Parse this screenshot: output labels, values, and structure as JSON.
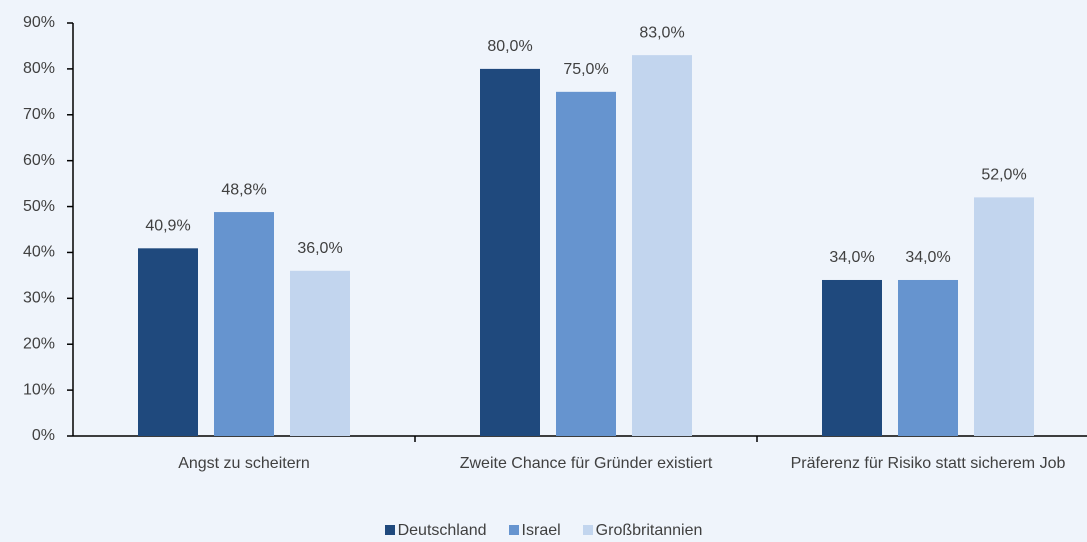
{
  "chart_data": {
    "type": "bar",
    "categories": [
      "Angst zu scheitern",
      "Zweite Chance für Gründer existiert",
      "Präferenz für Risiko statt sicherem Job"
    ],
    "series": [
      {
        "name": "Deutschland",
        "color": "#1f497d",
        "values": [
          40.9,
          80.0,
          34.0
        ],
        "value_labels": [
          "40,9%",
          "80,0%",
          "34,0%"
        ]
      },
      {
        "name": "Israel",
        "color": "#6694cf",
        "values": [
          48.8,
          75.0,
          34.0
        ],
        "value_labels": [
          "48,8%",
          "75,0%",
          "34,0%"
        ]
      },
      {
        "name": "Großbritannien",
        "color": "#c2d5ee",
        "values": [
          36.0,
          83.0,
          52.0
        ],
        "value_labels": [
          "36,0%",
          "83,0%",
          "52,0%"
        ]
      }
    ],
    "ylim": [
      0,
      90
    ],
    "yticks": [
      {
        "value": 0,
        "label": "0%"
      },
      {
        "value": 10,
        "label": "10%"
      },
      {
        "value": 20,
        "label": "20%"
      },
      {
        "value": 30,
        "label": "30%"
      },
      {
        "value": 40,
        "label": "40%"
      },
      {
        "value": 50,
        "label": "50%"
      },
      {
        "value": 60,
        "label": "60%"
      },
      {
        "value": 70,
        "label": "70%"
      },
      {
        "value": 80,
        "label": "80%"
      },
      {
        "value": 90,
        "label": "90%"
      }
    ],
    "grid": false,
    "legend": "bottom"
  }
}
